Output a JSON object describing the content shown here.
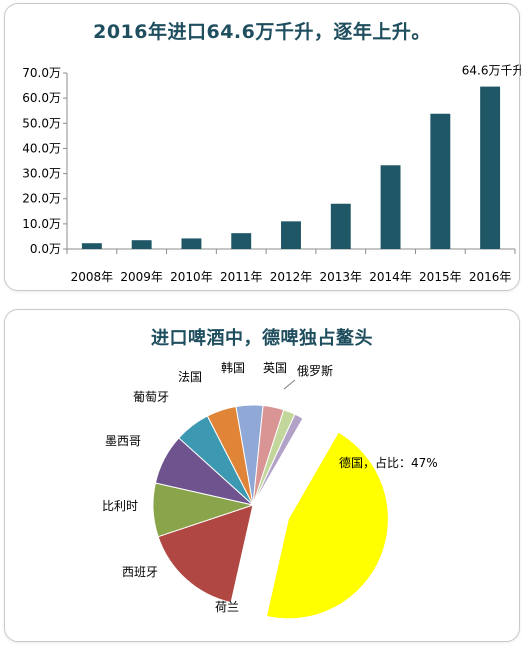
{
  "colors": {
    "bar": "#1f5766",
    "title": "#1f4e5f",
    "axis": "#8c8c8c"
  },
  "chart_data": [
    {
      "type": "bar",
      "title": "2016年进口64.6万千升，逐年上升。",
      "categories": [
        "2008年",
        "2009年",
        "2010年",
        "2011年",
        "2012年",
        "2013年",
        "2014年",
        "2015年",
        "2016年"
      ],
      "values": [
        2.3,
        3.5,
        4.2,
        6.3,
        11.0,
        18.0,
        33.3,
        53.8,
        64.6
      ],
      "ylim": [
        0,
        70
      ],
      "yticks": [
        0,
        10,
        20,
        30,
        40,
        50,
        60,
        70
      ],
      "ytick_labels": [
        "0.0万",
        "10.0万",
        "20.0万",
        "30.0万",
        "40.0万",
        "50.0万",
        "60.0万",
        "70.0万"
      ],
      "annotation": "64.6万千升",
      "grid": false
    },
    {
      "type": "pie",
      "title": "进口啤酒中，德啤独占鳌头",
      "slices": [
        {
          "label": "德国，占比：47%",
          "value": 47,
          "color": "#ffff00",
          "exploded": true
        },
        {
          "label": "荷兰",
          "value": 17,
          "color": "#b04742"
        },
        {
          "label": "西班牙",
          "value": 9,
          "color": "#8aa44c"
        },
        {
          "label": "比利时",
          "value": 8.5,
          "color": "#6e538f"
        },
        {
          "label": "墨西哥",
          "value": 6,
          "color": "#3d98b1"
        },
        {
          "label": "葡萄牙",
          "value": 5,
          "color": "#e08438"
        },
        {
          "label": "法国",
          "value": 4.5,
          "color": "#8fa8d5"
        },
        {
          "label": "韩国",
          "value": 3.5,
          "color": "#d99594"
        },
        {
          "label": "英国",
          "value": 2,
          "color": "#c3d69b"
        },
        {
          "label": "俄罗斯",
          "value": 1.5,
          "color": "#b3a2c7"
        }
      ]
    }
  ]
}
